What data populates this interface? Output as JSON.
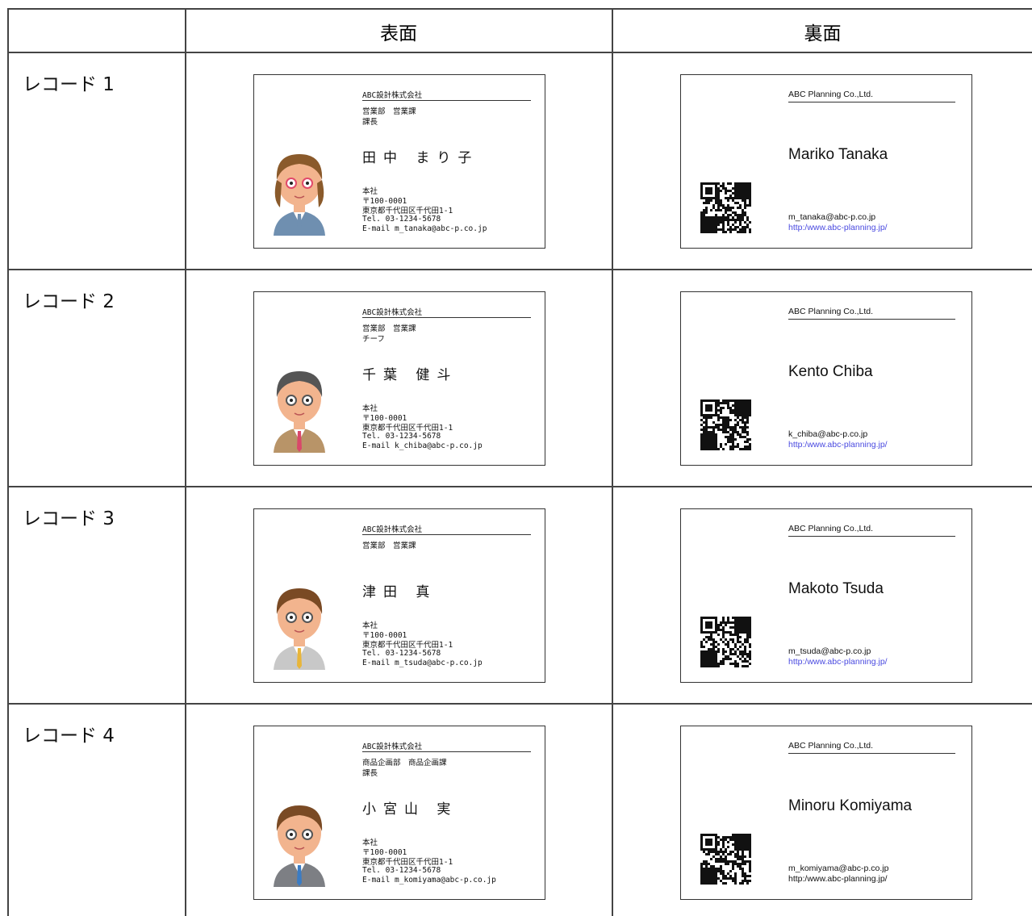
{
  "header": {
    "front": "表面",
    "back": "裏面"
  },
  "records": [
    {
      "label": "レコード 1",
      "front": {
        "company": "ABC設計株式会社",
        "department": "営業部　営業課",
        "title": "課長",
        "name": "田中 まり子",
        "office": "本社",
        "postal": "〒100-0001",
        "address": "東京都千代田区千代田1-1",
        "tel": "Tel. 03-1234-5678",
        "email": "E-mail m_tanaka@abc-p.co.jp"
      },
      "back": {
        "company": "ABC Planning Co.,Ltd.",
        "name": "Mariko Tanaka",
        "email": "m_tanaka@abc-p.co.jp",
        "url": "http:/www.abc-planning.jp/",
        "url_color": "#4a4ae0"
      }
    },
    {
      "label": "レコード 2",
      "front": {
        "company": "ABC設計株式会社",
        "department": "営業部　営業課",
        "title": "チーフ",
        "name": "千葉 健斗",
        "office": "本社",
        "postal": "〒100-0001",
        "address": "東京都千代田区千代田1-1",
        "tel": "Tel. 03-1234-5678",
        "email": "E-mail k_chiba@abc-p.co.jp"
      },
      "back": {
        "company": "ABC Planning Co.,Ltd.",
        "name": "Kento Chiba",
        "email": "k_chiba@abc-p.co.jp",
        "url": "http:/www.abc-planning.jp/",
        "url_color": "#4a4ae0"
      }
    },
    {
      "label": "レコード 3",
      "front": {
        "company": "ABC設計株式会社",
        "department": "営業部　営業課",
        "name": "津田 真",
        "office": "本社",
        "postal": "〒100-0001",
        "address": "東京都千代田区千代田1-1",
        "tel": "Tel. 03-1234-5678",
        "email": "E-mail m_tsuda@abc-p.co.jp"
      },
      "back": {
        "company": "ABC Planning Co.,Ltd.",
        "name": "Makoto Tsuda",
        "email": "m_tsuda@abc-p.co.jp",
        "url": "http:/www.abc-planning.jp/",
        "url_color": "#4a4ae0"
      }
    },
    {
      "label": "レコード 4",
      "front": {
        "company": "ABC設計株式会社",
        "department": "商品企画部　商品企画課",
        "title": "課長",
        "name": "小宮山 実",
        "office": "本社",
        "postal": "〒100-0001",
        "address": "東京都千代田区千代田1-1",
        "tel": "Tel. 03-1234-5678",
        "email": "E-mail m_komiyama@abc-p.co.jp"
      },
      "back": {
        "company": "ABC Planning Co.,Ltd.",
        "name": "Minoru Komiyama",
        "email": "m_komiyama@abc-p.co.jp",
        "url": "http:/www.abc-planning.jp/",
        "url_color": "#111111"
      }
    }
  ]
}
